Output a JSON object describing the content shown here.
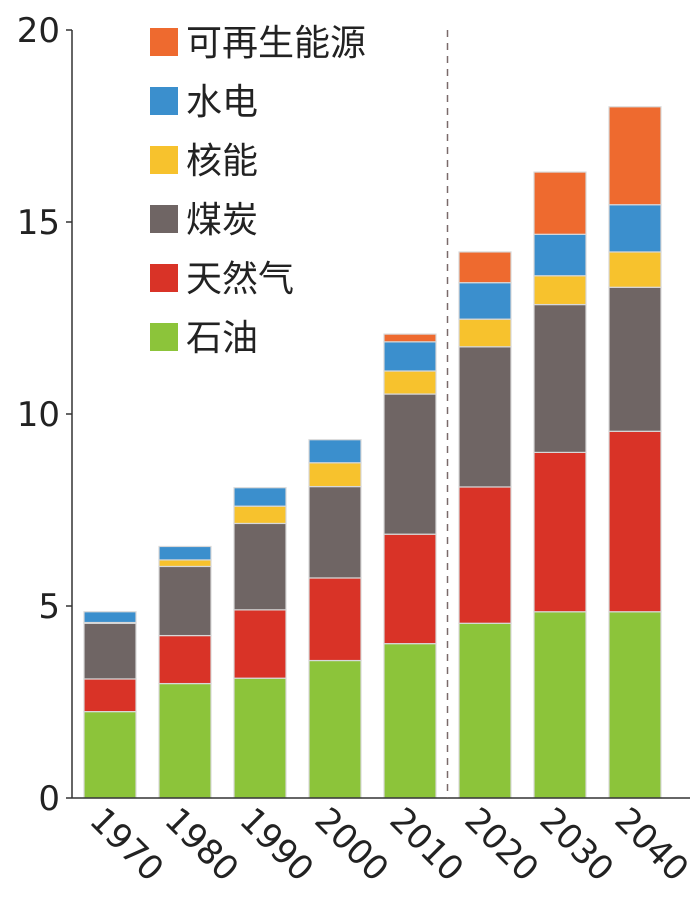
{
  "chart_data": {
    "type": "bar",
    "stacked": true,
    "categories": [
      "1970",
      "1980",
      "1990",
      "2000",
      "2010",
      "2020",
      "2030",
      "2040"
    ],
    "series": [
      {
        "name": "石油",
        "color": "#8cc43a",
        "values": [
          2.25,
          2.98,
          3.12,
          3.58,
          4.02,
          4.55,
          4.85,
          4.85
        ]
      },
      {
        "name": "天然气",
        "color": "#d93327",
        "values": [
          0.85,
          1.25,
          1.78,
          2.15,
          2.85,
          3.55,
          4.15,
          4.7
        ]
      },
      {
        "name": "煤炭",
        "color": "#6f6564",
        "values": [
          1.45,
          1.8,
          2.25,
          2.38,
          3.65,
          3.65,
          3.85,
          3.75
        ]
      },
      {
        "name": "核能",
        "color": "#f7c22d",
        "values": [
          0.02,
          0.17,
          0.45,
          0.62,
          0.6,
          0.72,
          0.75,
          0.92
        ]
      },
      {
        "name": "水电",
        "color": "#3b8fcd",
        "values": [
          0.28,
          0.35,
          0.48,
          0.6,
          0.76,
          0.95,
          1.08,
          1.23
        ]
      },
      {
        "name": "可再生能源",
        "color": "#ee6a2f",
        "values": [
          0,
          0,
          0,
          0,
          0.2,
          0.8,
          1.62,
          2.55
        ]
      }
    ],
    "legend_order": [
      "可再生能源",
      "水电",
      "核能",
      "煤炭",
      "天然气",
      "石油"
    ],
    "legend_position": "top-left",
    "ylim": [
      0,
      20
    ],
    "yticks": [
      "0",
      "5",
      "10",
      "15",
      "20"
    ],
    "divider_between": [
      "2010",
      "2020"
    ]
  }
}
